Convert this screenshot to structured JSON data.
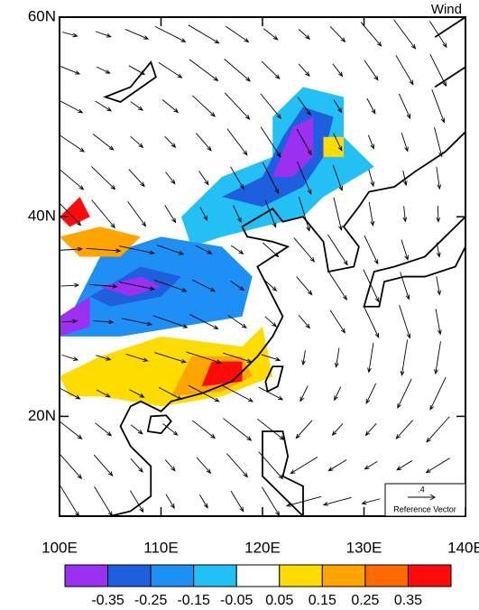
{
  "title": "Wind",
  "map": {
    "xlim": [
      100,
      140
    ],
    "ylim": [
      10,
      60
    ],
    "xticks": [
      {
        "value": 100,
        "label": "100E"
      },
      {
        "value": 110,
        "label": "110E"
      },
      {
        "value": 120,
        "label": "120E"
      },
      {
        "value": 130,
        "label": "130E"
      },
      {
        "value": 140,
        "label": "140E"
      }
    ],
    "yticks": [
      {
        "value": 20,
        "label": "20N"
      },
      {
        "value": 40,
        "label": "40N"
      },
      {
        "value": 60,
        "label": "60N"
      }
    ]
  },
  "colorbar": {
    "levels": [
      -0.35,
      -0.25,
      -0.15,
      -0.05,
      0.05,
      0.15,
      0.25,
      0.35
    ],
    "colors": [
      "#9b30f0",
      "#1e5fe0",
      "#1e8ff5",
      "#22c0f5",
      "#ffffff",
      "#ffdc00",
      "#ffa500",
      "#ff6a00",
      "#ff0a0a"
    ]
  },
  "reference_vector": {
    "magnitude": {
      "value": 0.4,
      "label": ".4"
    },
    "label": "Reference Vector"
  }
}
